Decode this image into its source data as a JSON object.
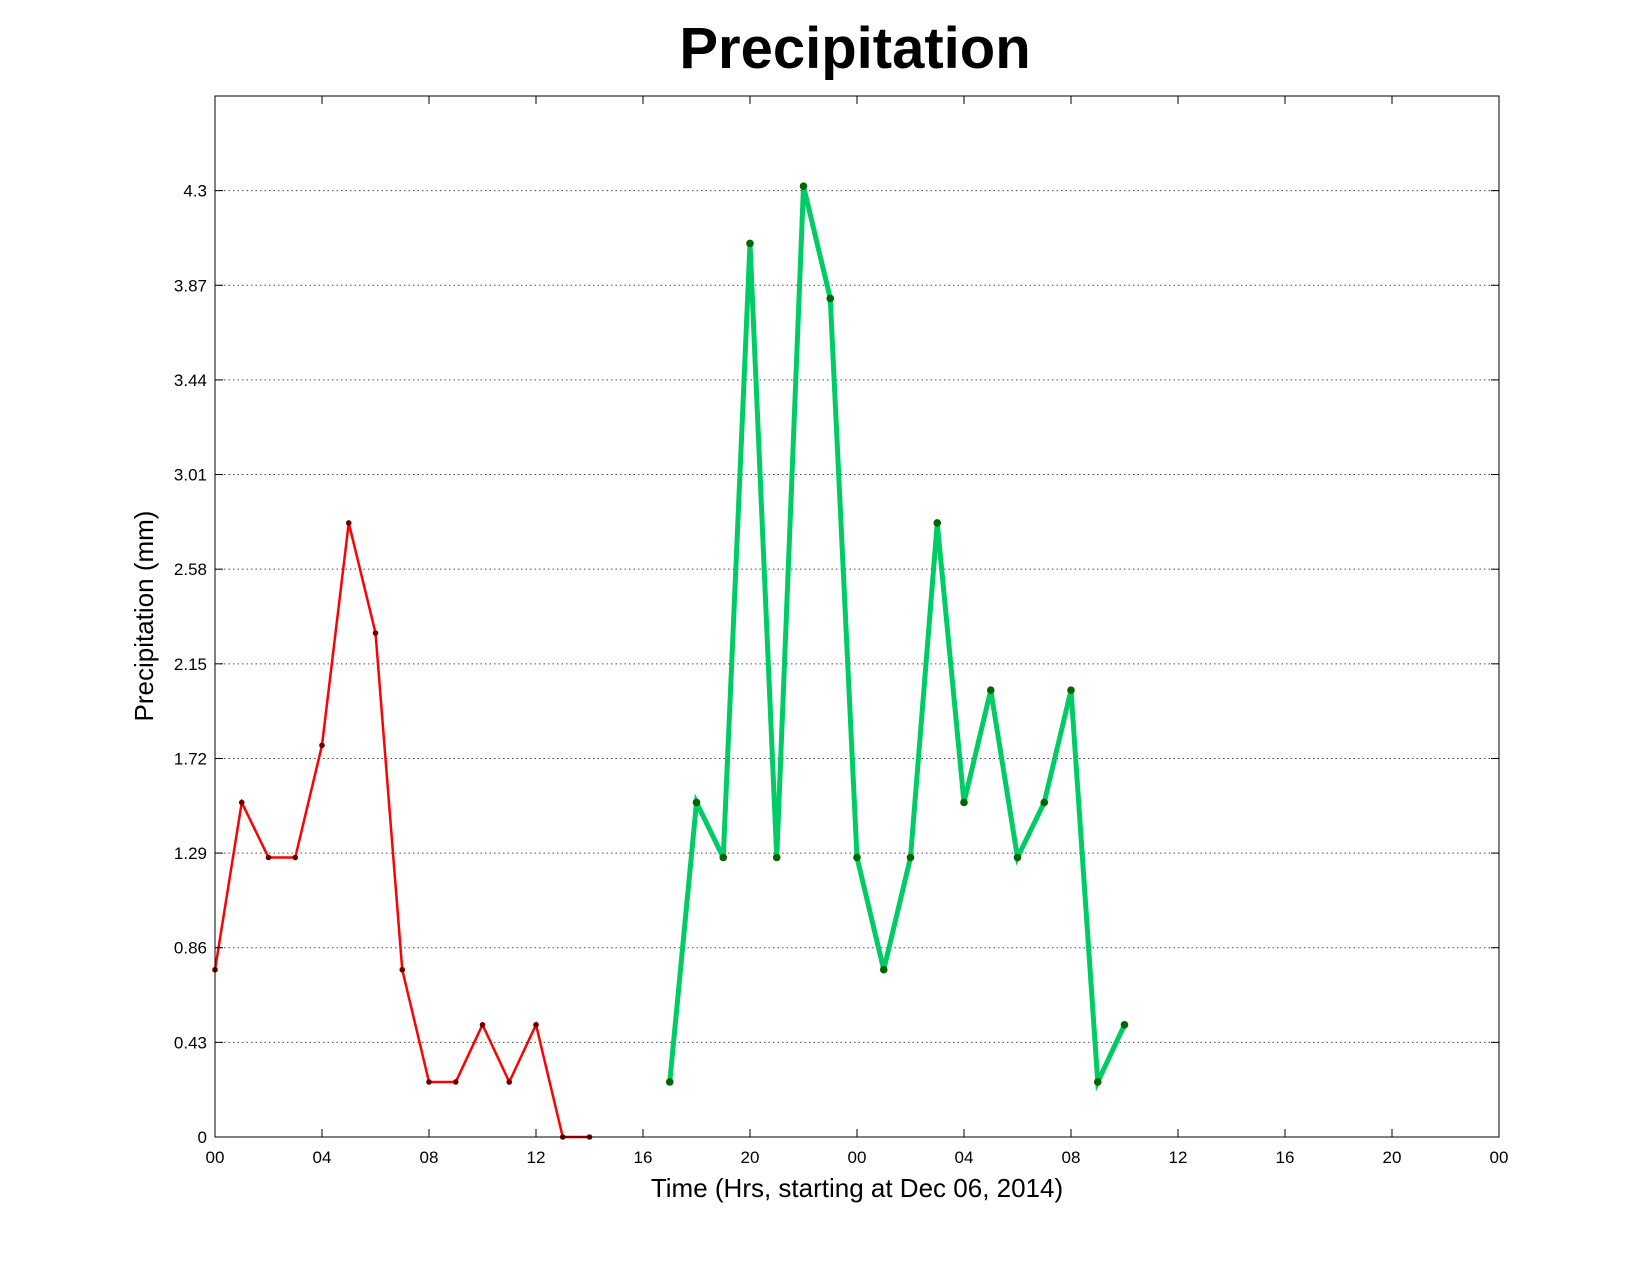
{
  "chart_data": {
    "type": "line",
    "title": "Precipitation",
    "xlabel": "Time (Hrs, starting at Dec 06, 2014)",
    "ylabel": "Precipitation (mm)",
    "xlim": [
      0,
      48
    ],
    "ylim": [
      0,
      4.73
    ],
    "grid": "y-dotted",
    "x_ticks": [
      {
        "value": 0,
        "label": "00"
      },
      {
        "value": 4,
        "label": "04"
      },
      {
        "value": 8,
        "label": "08"
      },
      {
        "value": 12,
        "label": "12"
      },
      {
        "value": 16,
        "label": "16"
      },
      {
        "value": 20,
        "label": "20"
      },
      {
        "value": 24,
        "label": "00"
      },
      {
        "value": 28,
        "label": "04"
      },
      {
        "value": 32,
        "label": "08"
      },
      {
        "value": 36,
        "label": "12"
      },
      {
        "value": 40,
        "label": "16"
      },
      {
        "value": 44,
        "label": "20"
      },
      {
        "value": 48,
        "label": "00"
      }
    ],
    "y_ticks": [
      {
        "value": 0,
        "label": "0"
      },
      {
        "value": 0.43,
        "label": "0.43"
      },
      {
        "value": 0.86,
        "label": "0.86"
      },
      {
        "value": 1.29,
        "label": "1.29"
      },
      {
        "value": 1.72,
        "label": "1.72"
      },
      {
        "value": 2.15,
        "label": "2.15"
      },
      {
        "value": 2.58,
        "label": "2.58"
      },
      {
        "value": 3.01,
        "label": "3.01"
      },
      {
        "value": 3.44,
        "label": "3.44"
      },
      {
        "value": 3.87,
        "label": "3.87"
      },
      {
        "value": 4.3,
        "label": "4.3"
      }
    ],
    "series": [
      {
        "color": "#ff0000",
        "marker_color": "#6b0000",
        "line_style": "thin",
        "x": [
          0,
          1,
          2,
          3,
          4,
          5,
          6,
          7,
          8,
          9,
          10,
          11,
          12,
          13,
          14
        ],
        "y": [
          0.76,
          1.52,
          1.27,
          1.27,
          1.78,
          2.79,
          2.29,
          0.76,
          0.25,
          0.25,
          0.51,
          0.25,
          0.51,
          0,
          0
        ]
      },
      {
        "color": "#00cc66",
        "marker_color": "#006600",
        "line_style": "thick",
        "x": [
          17,
          18,
          19,
          20,
          21,
          22,
          23,
          24,
          25,
          26,
          27,
          28,
          29,
          30,
          31,
          32,
          33,
          34
        ],
        "y": [
          0.25,
          1.52,
          1.27,
          4.06,
          1.27,
          4.32,
          3.81,
          1.27,
          0.76,
          1.27,
          2.79,
          1.52,
          2.03,
          1.27,
          1.52,
          2.03,
          0.25,
          0.51
        ]
      }
    ]
  }
}
